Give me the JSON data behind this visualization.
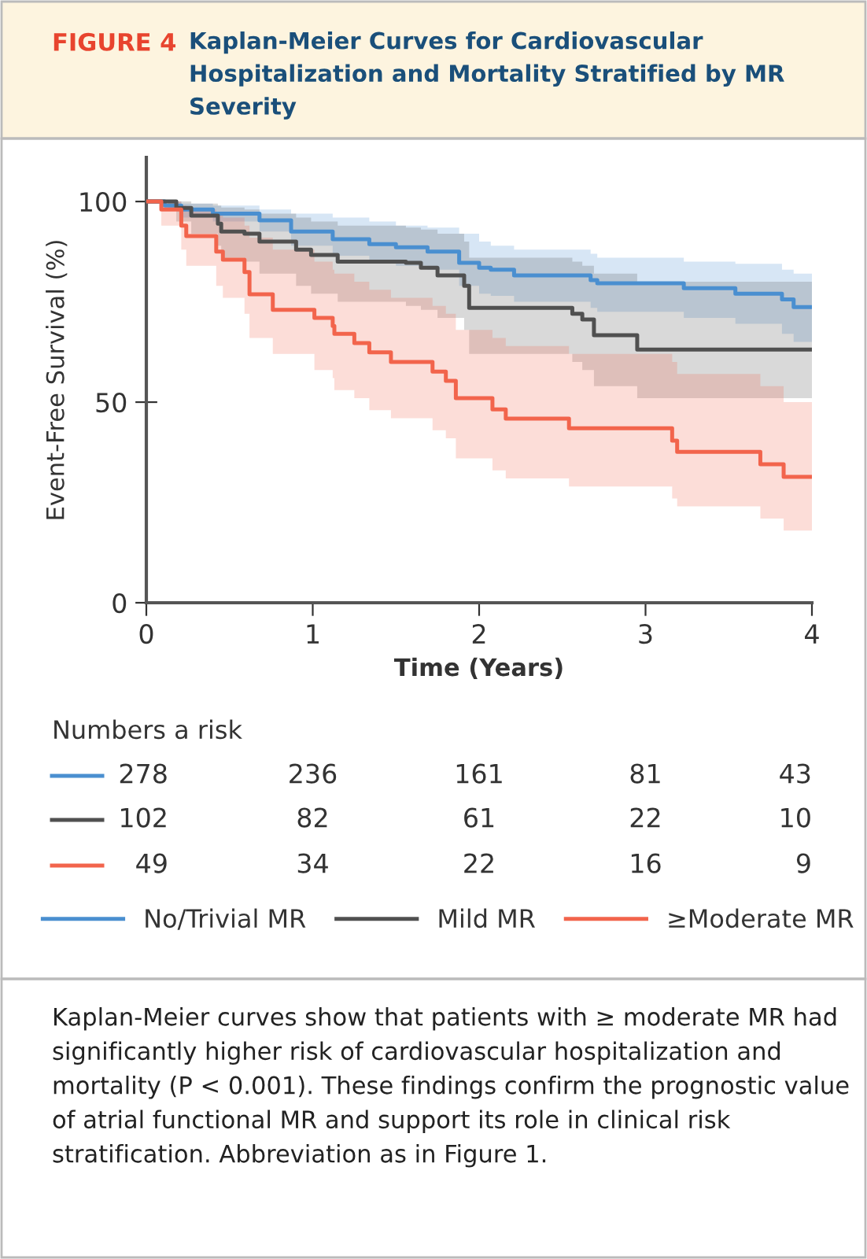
{
  "chart_data": {
    "type": "step",
    "title": "Kaplan-Meier Curves for Cardiovascular Hospitalization and Mortality Stratified by MR Severity",
    "xlabel": "Time (Years)",
    "ylabel": "Event-Free Survival (%)",
    "xlim": [
      0,
      4
    ],
    "xticks": [
      0,
      1,
      2,
      3,
      4
    ],
    "ylim": [
      0,
      111
    ],
    "yticks": [
      0,
      50,
      100
    ],
    "grid": false,
    "legend": "bottom",
    "marker": "none",
    "line_style": "solid",
    "series": [
      {
        "name": "No/Trivial MR",
        "color": "#4a8fd0",
        "x": [
          0,
          0.11,
          0.21,
          0.4,
          0.68,
          0.87,
          1.12,
          1.34,
          1.5,
          1.69,
          1.88,
          2.0,
          2.07,
          2.21,
          2.67,
          2.71,
          3.23,
          3.54,
          3.82,
          3.89,
          4.0
        ],
        "values": [
          100,
          99,
          98,
          97,
          95.3,
          92.5,
          90.6,
          89.4,
          88.6,
          87.5,
          84.7,
          83.5,
          83,
          81.6,
          80.4,
          79.6,
          78.4,
          77,
          75.6,
          73.7,
          73.7
        ],
        "upper": [
          100,
          100,
          99.5,
          99,
          98,
          97,
          96,
          95,
          94,
          93.5,
          92,
          90,
          89,
          88,
          87,
          86,
          85,
          84.5,
          83,
          82,
          80.5
        ],
        "lower": [
          100,
          98,
          96,
          95,
          92.5,
          89,
          86.5,
          85,
          84,
          83,
          79,
          77,
          76.5,
          75,
          73.5,
          72.5,
          71,
          69.5,
          67,
          65,
          65
        ]
      },
      {
        "name": "Mild MR",
        "color": "#505050",
        "x": [
          0,
          0.13,
          0.18,
          0.27,
          0.43,
          0.45,
          0.59,
          0.68,
          0.9,
          0.99,
          1.15,
          1.56,
          1.65,
          1.75,
          1.91,
          1.94,
          2.56,
          2.62,
          2.69,
          2.95,
          4.0
        ],
        "values": [
          100,
          100,
          98.4,
          96.5,
          94.5,
          92.5,
          92,
          90,
          88,
          86.7,
          85,
          84.7,
          83.5,
          81.6,
          79,
          73.5,
          72,
          70.6,
          66.7,
          63.1,
          63.1
        ],
        "upper": [
          100,
          100,
          100,
          99.5,
          99,
          98.5,
          98,
          97,
          96,
          95,
          94,
          93.5,
          93,
          92,
          90,
          86,
          85,
          84,
          82,
          80,
          80
        ],
        "lower": [
          100,
          98,
          95,
          92,
          89,
          86,
          85,
          82,
          79,
          77,
          75,
          74,
          73,
          71,
          68,
          62,
          60,
          58,
          54,
          51,
          51
        ]
      },
      {
        "name": "≥Moderate MR",
        "color": "#f2644c",
        "x": [
          0,
          0.09,
          0.21,
          0.24,
          0.42,
          0.46,
          0.59,
          0.62,
          0.76,
          1.01,
          1.12,
          1.13,
          1.25,
          1.34,
          1.47,
          1.72,
          1.8,
          1.86,
          2.08,
          2.16,
          2.54,
          3.16,
          3.19,
          3.69,
          3.83,
          4.0
        ],
        "values": [
          100,
          98,
          94,
          91.4,
          87.5,
          85.5,
          82.4,
          76.9,
          73,
          71,
          69,
          67,
          64.7,
          62.4,
          60,
          57.6,
          55.3,
          51,
          48.2,
          45.9,
          43.5,
          40.4,
          37.6,
          34.5,
          31.4,
          31.4
        ],
        "upper": [
          100,
          100,
          99,
          98,
          97,
          96,
          94,
          91,
          88,
          85,
          83,
          82,
          80,
          78,
          76,
          74,
          72,
          68,
          66,
          64,
          62,
          60,
          57,
          54,
          50,
          46
        ],
        "lower": [
          100,
          94,
          88,
          84,
          79,
          76,
          72,
          66,
          62,
          58,
          56,
          53,
          51,
          48,
          46,
          43,
          41,
          36,
          33,
          31,
          29,
          26,
          24,
          21,
          18,
          18
        ]
      }
    ],
    "annotations": [
      "FIGURE 4",
      "Numbers a risk",
      "278",
      "236",
      "161",
      "81",
      "43",
      "102",
      "82",
      "61",
      "22",
      "10",
      "49",
      "34",
      "22",
      "16",
      "9",
      "Kaplan-Meier curves show that patients with ≥ moderate MR had significantly higher risk of cardiovascular hospitalization and mortality (P < 0.001). These findings confirm the prognostic value of atrial functional MR and support its role in clinical risk stratification. Abbreviation as in Figure 1."
    ]
  }
}
